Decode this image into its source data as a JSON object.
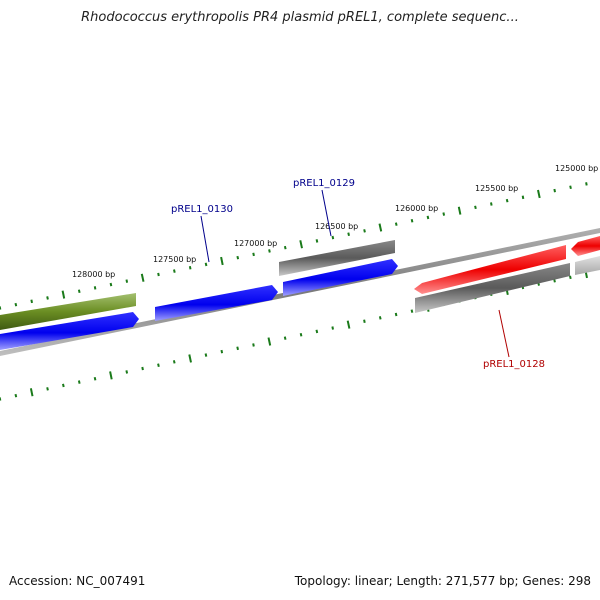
{
  "title": "Rhodococcus erythropolis PR4 plasmid pREL1, complete sequenc...",
  "footer": {
    "accession": "Accession: NC_007491",
    "summary": "Topology: linear; Length: 271,577 bp; Genes: 298"
  },
  "axis": {
    "ticks": [
      {
        "bp": 125000,
        "label": "125000 bp"
      },
      {
        "bp": 125500,
        "label": "125500 bp"
      },
      {
        "bp": 126000,
        "label": "126000 bp"
      },
      {
        "bp": 126500,
        "label": "126500 bp"
      },
      {
        "bp": 127000,
        "label": "127000 bp"
      },
      {
        "bp": 127500,
        "label": "127500 bp"
      },
      {
        "bp": 128000,
        "label": "128000 bp"
      }
    ]
  },
  "gene_labels": [
    {
      "name": "pREL1_0130",
      "color": "#00008b"
    },
    {
      "name": "pREL1_0129",
      "color": "#00008b"
    },
    {
      "name": "pREL1_0128",
      "color": "#b00000"
    }
  ],
  "colors": {
    "olive": "#6b8e23",
    "blue": "#0000ee",
    "gray": "#666666",
    "red": "#ee0000",
    "light_gray": "#bbbbbb",
    "backbone": "#888888",
    "tick": "#1a7a1a"
  }
}
